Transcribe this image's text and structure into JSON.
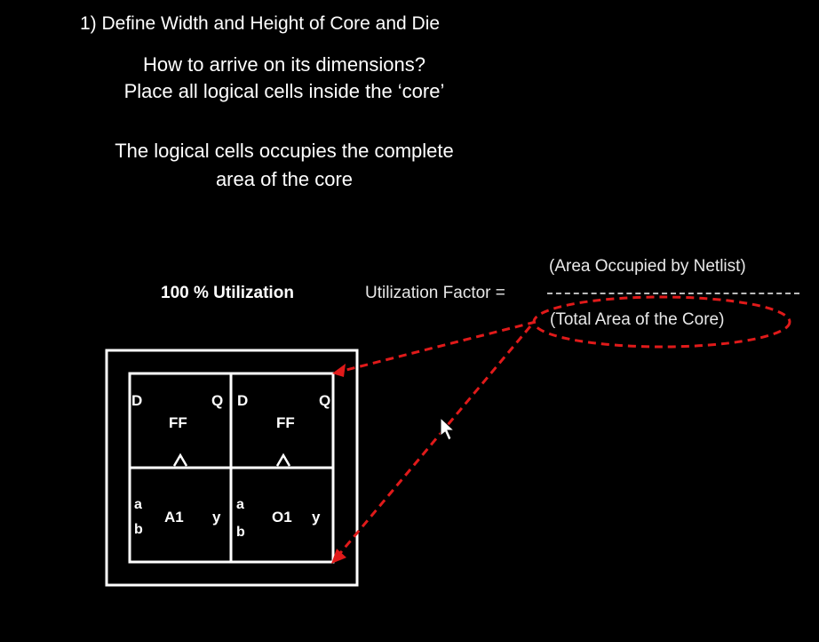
{
  "heading": "1) Define Width and Height of Core and Die",
  "question_line1": "How to arrive on its dimensions?",
  "question_line2": "Place all logical cells inside the ‘core’",
  "statement_line1": "The logical cells occupies the complete",
  "statement_line2": "area of the core",
  "utilization_label": "100 % Utilization",
  "formula": {
    "label": "Utilization Factor =",
    "numerator": "(Area Occupied by Netlist)",
    "denominator": "(Total Area of the Core)"
  },
  "cells": {
    "ff_left": {
      "d": "D",
      "q": "Q",
      "name": "FF",
      "clock": "^"
    },
    "ff_right": {
      "d": "D",
      "q": "Q",
      "name": "FF",
      "clock": "^"
    },
    "and_gate": {
      "a": "a",
      "b": "b",
      "name": "A1",
      "y": "y"
    },
    "or_gate": {
      "a": "a",
      "b": "b",
      "name": "O1",
      "y": "y"
    }
  },
  "colors": {
    "background": "#000000",
    "foreground": "#ffffff",
    "annotation": "#e01a1a"
  },
  "icons": [
    "mouse-pointer-icon"
  ]
}
